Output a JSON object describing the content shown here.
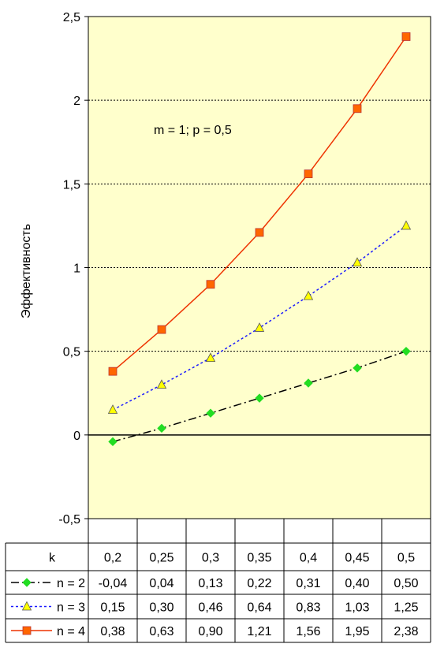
{
  "chart_data": {
    "type": "line",
    "annotation": "m = 1; p = 0,5",
    "xlabel": "k",
    "ylabel": "Эффективность",
    "ylim": [
      -0.5,
      2.5
    ],
    "yticks": [
      "-0,5",
      "0",
      "0,5",
      "1",
      "1,5",
      "2",
      "2,5"
    ],
    "grid": true,
    "categories": [
      "0,2",
      "0,25",
      "0,3",
      "0,35",
      "0,4",
      "0,45",
      "0,5"
    ],
    "series": [
      {
        "name": "n = 2",
        "values": [
          -0.04,
          0.04,
          0.13,
          0.22,
          0.31,
          0.4,
          0.5
        ],
        "labels": [
          "-0,04",
          "0,04",
          "0,13",
          "0,22",
          "0,31",
          "0,40",
          "0,50"
        ],
        "color": "#000000",
        "marker_color": "#22dd22",
        "marker": "diamond",
        "dash": "dashdot"
      },
      {
        "name": "n = 3",
        "values": [
          0.15,
          0.3,
          0.46,
          0.64,
          0.83,
          1.03,
          1.25
        ],
        "labels": [
          "0,15",
          "0,30",
          "0,46",
          "0,64",
          "0,83",
          "1,03",
          "1,25"
        ],
        "color": "#1a1aff",
        "marker_color": "#ffff00",
        "marker": "triangle",
        "dash": "dotted"
      },
      {
        "name": "n = 4",
        "values": [
          0.38,
          0.63,
          0.9,
          1.21,
          1.56,
          1.95,
          2.38
        ],
        "labels": [
          "0,38",
          "0,63",
          "0,90",
          "1,21",
          "1,56",
          "1,95",
          "2,38"
        ],
        "color": "#ee3300",
        "marker_color": "#ff6600",
        "marker": "square",
        "dash": "solid"
      }
    ],
    "colors": {
      "plot_background": "#ffffcc",
      "gridline": "#000000"
    }
  }
}
